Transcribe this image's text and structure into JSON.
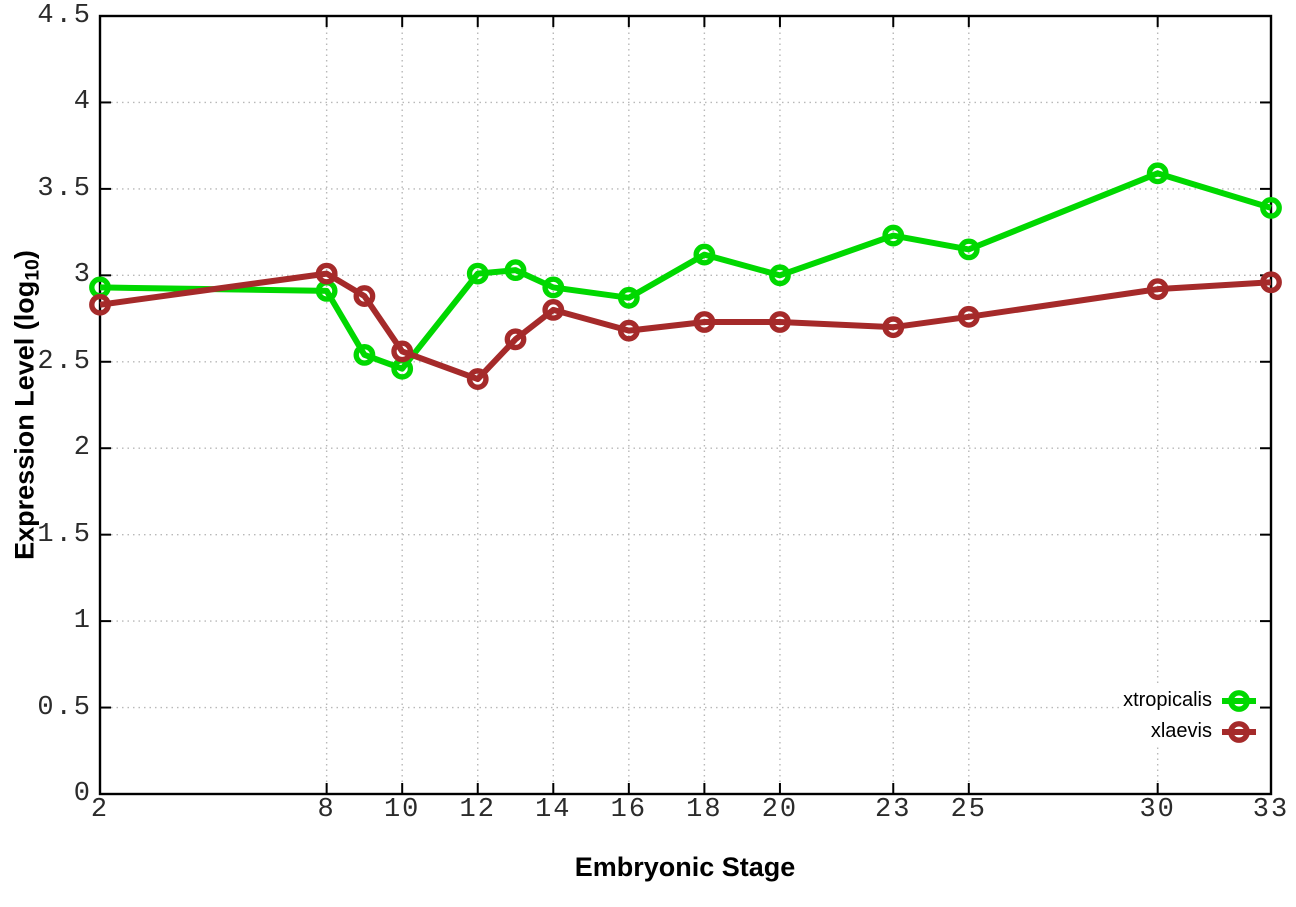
{
  "chart_data": {
    "type": "line",
    "title": "",
    "xlabel": "Embryonic Stage",
    "ylabel": "Expression Level (log10)",
    "ylabel_parts": {
      "main": "Expression Level (log",
      "sub": "10",
      "end": ")"
    },
    "x": [
      2,
      8,
      9,
      10,
      12,
      13,
      14,
      16,
      18,
      20,
      23,
      25,
      30,
      33
    ],
    "series": [
      {
        "name": "xtropicalis",
        "color": "#00d800",
        "marker": "open-circle",
        "values": [
          2.93,
          2.91,
          2.54,
          2.46,
          3.01,
          3.03,
          2.93,
          2.87,
          3.12,
          3.0,
          3.23,
          3.15,
          3.59,
          3.39
        ]
      },
      {
        "name": "xlaevis",
        "color": "#a52a2a",
        "marker": "open-circle",
        "values": [
          2.83,
          3.01,
          2.88,
          2.56,
          2.4,
          2.63,
          2.8,
          2.68,
          2.73,
          2.73,
          2.7,
          2.76,
          2.92,
          2.96
        ]
      }
    ],
    "xlim": [
      2,
      33
    ],
    "ylim": [
      0,
      4.5
    ],
    "x_ticks": [
      2,
      8,
      10,
      12,
      14,
      16,
      18,
      20,
      23,
      25,
      30,
      33
    ],
    "x_tick_labels": [
      "2",
      "8",
      "10",
      "12",
      "14",
      "16",
      "18",
      "20",
      "23",
      "25",
      "30",
      "33"
    ],
    "y_ticks": [
      0,
      0.5,
      1,
      1.5,
      2,
      2.5,
      3,
      3.5,
      4,
      4.5
    ],
    "y_tick_labels": [
      "0",
      "0.5",
      "1",
      "1.5",
      "2",
      "2.5",
      "3",
      "3.5",
      "4",
      "4.5"
    ],
    "grid": true,
    "legend_position": "bottom-right",
    "colors": {
      "axis": "#000000",
      "grid": "#b8b8b8",
      "tick_label": "#2b2b2b"
    }
  }
}
